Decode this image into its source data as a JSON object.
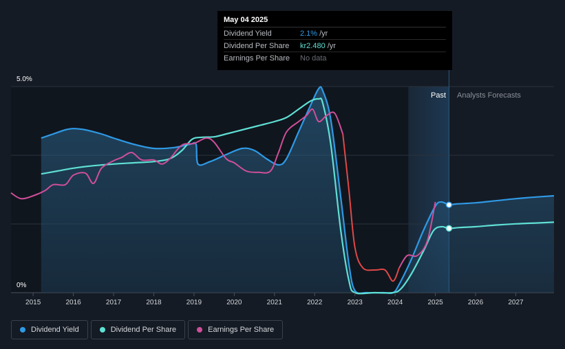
{
  "tooltip": {
    "date": "May 04 2025",
    "rows": [
      {
        "label": "Dividend Yield",
        "value": "2.1%",
        "unit": "/yr"
      },
      {
        "label": "Dividend Per Share",
        "value": "kr2.480",
        "unit": "/yr"
      },
      {
        "label": "Earnings Per Share",
        "value": "No data",
        "unit": ""
      }
    ]
  },
  "regions": {
    "past": "Past",
    "forecast": "Analysts Forecasts"
  },
  "legend": [
    {
      "label": "Dividend Yield",
      "color": "#2f9ae6"
    },
    {
      "label": "Dividend Per Share",
      "color": "#5fe0d5"
    },
    {
      "label": "Earnings Per Share",
      "color": "#d04f9a"
    }
  ],
  "chart_data": {
    "type": "line",
    "x_ticks": [
      "2015",
      "2016",
      "2017",
      "2018",
      "2019",
      "2020",
      "2021",
      "2022",
      "2023",
      "2024",
      "2025",
      "2026",
      "2027"
    ],
    "y_ticks": [
      "5.0%",
      "0%"
    ],
    "ylim": [
      0,
      5
    ],
    "xlim": [
      2014.45,
      2027.95
    ],
    "past_end": 2025.34,
    "forecast_band_start": 2024.33,
    "series": [
      {
        "name": "Dividend Yield",
        "color": "#2f9ae6",
        "area": true,
        "points": [
          [
            2015.2,
            3.75
          ],
          [
            2015.5,
            3.85
          ],
          [
            2015.8,
            3.95
          ],
          [
            2016.0,
            3.98
          ],
          [
            2016.3,
            3.95
          ],
          [
            2016.7,
            3.85
          ],
          [
            2017.0,
            3.75
          ],
          [
            2017.5,
            3.6
          ],
          [
            2018.0,
            3.5
          ],
          [
            2018.5,
            3.52
          ],
          [
            2018.9,
            3.6
          ],
          [
            2019.05,
            3.6
          ],
          [
            2019.1,
            3.12
          ],
          [
            2019.4,
            3.18
          ],
          [
            2019.8,
            3.35
          ],
          [
            2020.2,
            3.5
          ],
          [
            2020.5,
            3.45
          ],
          [
            2020.8,
            3.25
          ],
          [
            2021.1,
            3.1
          ],
          [
            2021.3,
            3.25
          ],
          [
            2021.6,
            3.9
          ],
          [
            2021.9,
            4.55
          ],
          [
            2022.1,
            4.95
          ],
          [
            2022.2,
            4.9
          ],
          [
            2022.4,
            4.2
          ],
          [
            2022.65,
            2.3
          ],
          [
            2022.85,
            0.7
          ],
          [
            2023.0,
            0.05
          ],
          [
            2023.3,
            0.0
          ],
          [
            2023.7,
            0.0
          ],
          [
            2023.95,
            0.0
          ],
          [
            2024.1,
            0.2
          ],
          [
            2024.4,
            0.8
          ],
          [
            2024.7,
            1.5
          ],
          [
            2025.0,
            2.1
          ],
          [
            2025.15,
            2.2
          ],
          [
            2025.34,
            2.13
          ],
          [
            2025.5,
            2.15
          ],
          [
            2026.0,
            2.18
          ],
          [
            2026.5,
            2.23
          ],
          [
            2027.0,
            2.28
          ],
          [
            2027.5,
            2.32
          ],
          [
            2027.95,
            2.35
          ]
        ]
      },
      {
        "name": "Dividend Per Share",
        "color": "#5fe0d5",
        "area": false,
        "points": [
          [
            2015.2,
            2.88
          ],
          [
            2015.6,
            2.95
          ],
          [
            2016.0,
            3.02
          ],
          [
            2016.5,
            3.08
          ],
          [
            2017.0,
            3.12
          ],
          [
            2017.5,
            3.15
          ],
          [
            2018.0,
            3.18
          ],
          [
            2018.4,
            3.25
          ],
          [
            2018.7,
            3.45
          ],
          [
            2018.95,
            3.72
          ],
          [
            2019.2,
            3.77
          ],
          [
            2019.5,
            3.78
          ],
          [
            2019.8,
            3.85
          ],
          [
            2020.2,
            3.95
          ],
          [
            2020.6,
            4.05
          ],
          [
            2021.0,
            4.15
          ],
          [
            2021.3,
            4.25
          ],
          [
            2021.6,
            4.45
          ],
          [
            2021.9,
            4.65
          ],
          [
            2022.1,
            4.7
          ],
          [
            2022.2,
            4.6
          ],
          [
            2022.4,
            3.6
          ],
          [
            2022.65,
            1.5
          ],
          [
            2022.85,
            0.3
          ],
          [
            2023.0,
            0.0
          ],
          [
            2023.5,
            0.0
          ],
          [
            2023.95,
            0.0
          ],
          [
            2024.15,
            0.1
          ],
          [
            2024.4,
            0.45
          ],
          [
            2024.7,
            1.0
          ],
          [
            2024.95,
            1.5
          ],
          [
            2025.15,
            1.6
          ],
          [
            2025.34,
            1.56
          ],
          [
            2025.6,
            1.58
          ],
          [
            2026.0,
            1.6
          ],
          [
            2026.5,
            1.64
          ],
          [
            2027.0,
            1.67
          ],
          [
            2027.5,
            1.69
          ],
          [
            2027.95,
            1.71
          ]
        ]
      },
      {
        "name": "Earnings Per Share",
        "color": "#d04f9a",
        "color_drop": "#e04848",
        "area": false,
        "points": [
          [
            2014.45,
            2.42
          ],
          [
            2014.7,
            2.28
          ],
          [
            2015.0,
            2.35
          ],
          [
            2015.3,
            2.48
          ],
          [
            2015.5,
            2.62
          ],
          [
            2015.8,
            2.62
          ],
          [
            2016.0,
            2.85
          ],
          [
            2016.3,
            2.9
          ],
          [
            2016.5,
            2.65
          ],
          [
            2016.7,
            3.02
          ],
          [
            2017.0,
            3.2
          ],
          [
            2017.2,
            3.28
          ],
          [
            2017.45,
            3.4
          ],
          [
            2017.7,
            3.22
          ],
          [
            2018.0,
            3.22
          ],
          [
            2018.2,
            3.12
          ],
          [
            2018.4,
            3.25
          ],
          [
            2018.7,
            3.58
          ],
          [
            2019.0,
            3.62
          ],
          [
            2019.3,
            3.75
          ],
          [
            2019.5,
            3.65
          ],
          [
            2019.8,
            3.25
          ],
          [
            2020.0,
            3.15
          ],
          [
            2020.3,
            2.95
          ],
          [
            2020.6,
            2.92
          ],
          [
            2020.9,
            2.95
          ],
          [
            2021.1,
            3.4
          ],
          [
            2021.3,
            3.9
          ],
          [
            2021.6,
            4.15
          ],
          [
            2021.8,
            4.3
          ],
          [
            2021.95,
            4.45
          ],
          [
            2022.1,
            4.15
          ],
          [
            2022.3,
            4.3
          ],
          [
            2022.5,
            4.35
          ],
          [
            2022.7,
            3.85
          ],
          [
            2022.85,
            2.5
          ],
          [
            2023.0,
            1.1
          ],
          [
            2023.2,
            0.6
          ],
          [
            2023.5,
            0.55
          ],
          [
            2023.75,
            0.55
          ],
          [
            2023.95,
            0.28
          ],
          [
            2024.1,
            0.6
          ],
          [
            2024.3,
            0.9
          ],
          [
            2024.55,
            0.9
          ],
          [
            2024.8,
            1.25
          ],
          [
            2025.0,
            2.2
          ]
        ]
      }
    ],
    "markers": [
      {
        "series": "Dividend Yield",
        "x": 2025.34,
        "y": 2.13
      },
      {
        "series": "Dividend Per Share",
        "x": 2025.34,
        "y": 1.56
      }
    ]
  }
}
